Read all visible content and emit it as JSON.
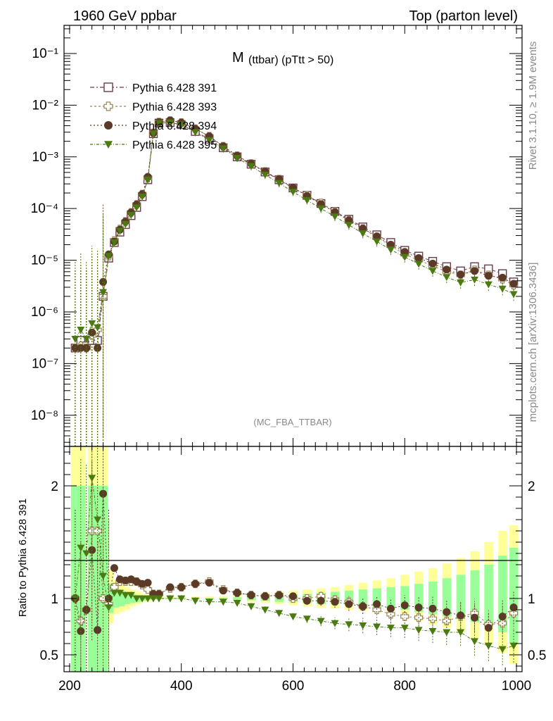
{
  "header": {
    "left": "1960 GeV ppbar",
    "right": "Top (parton level)"
  },
  "side": {
    "rivet": "Rivet 3.1.10, ≥ 1.9M events",
    "mcplots": "mcplots.cern.ch [arXiv:1306.3436]"
  },
  "plot": {
    "title_main": "M",
    "title_sub": "(ttbar) (pTtt > 50)",
    "watermark": "(MC_FBA_TTBAR)"
  },
  "colors": {
    "s391": "#6b3a4e",
    "s393": "#9a8355",
    "s394": "#5c3a28",
    "s395": "#4c7a12",
    "band_yellow": "#ffff99",
    "band_green": "#99ff99"
  },
  "chart_data": [
    {
      "type": "scatter",
      "panel": "main",
      "y_scale": "log",
      "xlim": [
        190,
        1010
      ],
      "ylim": [
        2.5e-09,
        0.35
      ],
      "yticks": [
        {
          "value": 1e-08,
          "label": "10⁻⁸"
        },
        {
          "value": 1e-07,
          "label": "10⁻⁷"
        },
        {
          "value": 1e-06,
          "label": "10⁻⁶"
        },
        {
          "value": 1e-05,
          "label": "10⁻⁵"
        },
        {
          "value": 0.0001,
          "label": "10⁻⁴"
        },
        {
          "value": 0.001,
          "label": "10⁻³"
        },
        {
          "value": 0.01,
          "label": "10⁻²"
        },
        {
          "value": 0.1,
          "label": "10⁻¹"
        }
      ],
      "legend_position": "top-left",
      "series": [
        {
          "name": "Pythia 6.428 391",
          "marker": "open-square",
          "color": "#6b3a4e",
          "x": [
            210,
            220,
            230,
            240,
            250,
            260,
            270,
            280,
            290,
            300,
            310,
            320,
            330,
            340,
            350,
            360,
            380,
            400,
            425,
            450,
            475,
            500,
            525,
            550,
            575,
            600,
            625,
            650,
            675,
            700,
            725,
            750,
            775,
            800,
            825,
            850,
            875,
            900,
            925,
            950,
            975,
            995
          ],
          "y": [
            2e-07,
            2.8e-07,
            2.2e-07,
            2.8e-07,
            2.8e-07,
            2e-06,
            1.1e-05,
            2.2e-05,
            3.5e-05,
            4.9e-05,
            7.3e-05,
            0.000105,
            0.00017,
            0.00036,
            0.0028,
            0.0045,
            0.0046,
            0.0042,
            0.0031,
            0.0022,
            0.0015,
            0.001,
            0.00072,
            0.00051,
            0.00036,
            0.00025,
            0.00018,
            0.000125,
            8.8e-05,
            6.2e-05,
            4.4e-05,
            3.1e-05,
            2.2e-05,
            1.55e-05,
            1.2e-05,
            9.5e-06,
            7.5e-06,
            6.2e-06,
            7.5e-06,
            6.8e-06,
            5.5e-06,
            3.8e-06
          ]
        },
        {
          "name": "Pythia 6.428 393",
          "marker": "open-cross",
          "color": "#9a8355",
          "x": [
            210,
            220,
            230,
            240,
            250,
            260,
            270,
            280,
            290,
            300,
            310,
            320,
            330,
            340,
            350,
            360,
            380,
            400,
            425,
            450,
            475,
            500,
            525,
            550,
            575,
            600,
            625,
            650,
            675,
            700,
            725,
            750,
            775,
            800,
            825,
            850,
            875,
            900,
            925,
            950,
            975,
            995
          ],
          "y": [
            2e-07,
            2.2e-07,
            2e-07,
            3.5e-07,
            4.5e-07,
            2e-06,
            1.2e-05,
            2.4e-05,
            4e-05,
            5.6e-05,
            8.4e-05,
            0.00012,
            0.00019,
            0.00039,
            0.0029,
            0.0047,
            0.005,
            0.0046,
            0.0035,
            0.0025,
            0.0016,
            0.00105,
            0.00074,
            0.00052,
            0.00037,
            0.00025,
            0.00018,
            0.000128,
            8.7e-05,
            6e-05,
            4.1e-05,
            2.8e-05,
            1.9e-05,
            1.3e-05,
            1e-05,
            7.8e-06,
            6e-06,
            5.2e-06,
            6.5e-06,
            5.2e-06,
            4.3e-06,
            3.3e-06
          ]
        },
        {
          "name": "Pythia 6.428 394",
          "marker": "filled-circle",
          "color": "#5c3a28",
          "x": [
            210,
            220,
            230,
            240,
            250,
            260,
            270,
            280,
            290,
            300,
            310,
            320,
            330,
            340,
            350,
            360,
            380,
            400,
            425,
            450,
            475,
            500,
            525,
            550,
            575,
            600,
            625,
            650,
            675,
            700,
            725,
            750,
            775,
            800,
            825,
            850,
            875,
            900,
            925,
            950,
            975,
            995
          ],
          "y": [
            2e-07,
            2e-07,
            2e-07,
            4e-07,
            2e-07,
            3.8e-06,
            1.3e-05,
            2.3e-05,
            3.9e-05,
            5.6e-05,
            8.4e-05,
            0.00012,
            0.00019,
            0.00041,
            0.0029,
            0.0047,
            0.0051,
            0.0046,
            0.0035,
            0.0025,
            0.0016,
            0.00105,
            0.00074,
            0.00052,
            0.00037,
            0.000255,
            0.000175,
            0.000122,
            8.5e-05,
            5.9e-05,
            4.1e-05,
            2.9e-05,
            2e-05,
            1.45e-05,
            1.1e-05,
            8.6e-06,
            6.6e-06,
            5.3e-06,
            6.2e-06,
            5e-06,
            4.6e-06,
            3.5e-06
          ]
        },
        {
          "name": "Pythia 6.428 395",
          "marker": "filled-triangle-down",
          "color": "#4c7a12",
          "x": [
            210,
            220,
            230,
            240,
            250,
            260,
            270,
            280,
            290,
            300,
            310,
            320,
            330,
            340,
            350,
            360,
            380,
            400,
            425,
            450,
            475,
            500,
            525,
            550,
            575,
            600,
            625,
            650,
            675,
            700,
            725,
            750,
            775,
            800,
            825,
            850,
            875,
            900,
            925,
            950,
            975,
            995
          ],
          "y": [
            3e-07,
            4.5e-07,
            3e-07,
            6e-07,
            5e-07,
            2.4e-06,
            1.2e-05,
            2.2e-05,
            3.7e-05,
            5e-05,
            7.5e-05,
            0.000105,
            0.00017,
            0.00036,
            0.0028,
            0.0045,
            0.0046,
            0.0042,
            0.003,
            0.0021,
            0.00145,
            0.00095,
            0.00066,
            0.00045,
            0.00031,
            0.00021,
            0.000145,
            0.0001,
            7e-05,
            4.8e-05,
            3.3e-05,
            2.3e-05,
            1.6e-05,
            1.15e-05,
            8.5e-06,
            6.2e-06,
            4.7e-06,
            3.7e-06,
            4.2e-06,
            3.4e-06,
            2.8e-06,
            2.2e-06
          ]
        }
      ]
    },
    {
      "type": "scatter",
      "panel": "ratio",
      "ylabel": "Ratio to Pythia 6.428 391",
      "xlim": [
        190,
        1010
      ],
      "ylim": [
        0.35,
        2.35
      ],
      "xticks": [
        200,
        400,
        600,
        800,
        1000
      ],
      "yticks": [
        0.5,
        1,
        2
      ],
      "bands": {
        "x": [
          210,
          220,
          230,
          240,
          250,
          260,
          270,
          280,
          290,
          300,
          310,
          320,
          330,
          340,
          350,
          360,
          380,
          400,
          425,
          450,
          475,
          500,
          525,
          550,
          575,
          600,
          625,
          650,
          675,
          700,
          725,
          750,
          775,
          800,
          825,
          850,
          875,
          900,
          925,
          950,
          975,
          995
        ],
        "yellow_lo": [
          0.35,
          0.35,
          1,
          0.35,
          0.35,
          0.35,
          0.78,
          0.86,
          0.88,
          0.9,
          0.93,
          0.95,
          0.97,
          0.98,
          0.99,
          0.99,
          0.99,
          0.99,
          0.99,
          0.99,
          0.99,
          0.98,
          0.97,
          0.96,
          0.95,
          0.94,
          0.93,
          0.92,
          0.91,
          0.9,
          0.89,
          0.87,
          0.85,
          0.83,
          0.8,
          0.77,
          0.74,
          0.7,
          0.65,
          0.6,
          0.52,
          0.42
        ],
        "yellow_hi": [
          2.35,
          2.35,
          1,
          2.35,
          2.35,
          2.35,
          1.25,
          1.16,
          1.12,
          1.1,
          1.08,
          1.06,
          1.04,
          1.03,
          1.02,
          1.02,
          1.02,
          1.02,
          1.02,
          1.02,
          1.02,
          1.03,
          1.04,
          1.05,
          1.06,
          1.07,
          1.08,
          1.09,
          1.1,
          1.12,
          1.14,
          1.16,
          1.18,
          1.21,
          1.24,
          1.27,
          1.31,
          1.36,
          1.42,
          1.5,
          1.6,
          1.65
        ],
        "green_lo": [
          0.35,
          0.35,
          1,
          0.35,
          0.35,
          0.35,
          0.87,
          0.92,
          0.93,
          0.95,
          0.96,
          0.97,
          0.98,
          0.99,
          0.995,
          0.995,
          0.995,
          0.995,
          0.995,
          0.995,
          0.995,
          0.99,
          0.985,
          0.98,
          0.97,
          0.97,
          0.96,
          0.95,
          0.95,
          0.94,
          0.93,
          0.92,
          0.91,
          0.9,
          0.88,
          0.86,
          0.84,
          0.82,
          0.79,
          0.76,
          0.7,
          0.6
        ],
        "green_hi": [
          2.0,
          2.0,
          1,
          2.0,
          2.0,
          2.0,
          1.13,
          1.08,
          1.07,
          1.05,
          1.04,
          1.03,
          1.02,
          1.01,
          1.005,
          1.005,
          1.005,
          1.005,
          1.005,
          1.005,
          1.005,
          1.01,
          1.015,
          1.02,
          1.03,
          1.035,
          1.04,
          1.05,
          1.06,
          1.07,
          1.08,
          1.09,
          1.1,
          1.11,
          1.13,
          1.15,
          1.18,
          1.21,
          1.25,
          1.3,
          1.38,
          1.45
        ]
      },
      "series": [
        {
          "name": "Pythia 6.428 393",
          "marker": "open-cross",
          "color": "#9a8355",
          "x": [
            210,
            220,
            230,
            240,
            250,
            260,
            270,
            280,
            290,
            300,
            310,
            320,
            330,
            340,
            350,
            360,
            380,
            400,
            425,
            450,
            475,
            500,
            525,
            550,
            575,
            600,
            625,
            650,
            675,
            700,
            725,
            750,
            775,
            800,
            825,
            850,
            875,
            900,
            925,
            950,
            975,
            995
          ],
          "y": [
            1.0,
            0.8,
            0.9,
            1.6,
            1.6,
            1.0,
            0.95,
            1.1,
            1.15,
            1.15,
            1.15,
            1.15,
            1.12,
            1.08,
            1.04,
            1.04,
            1.09,
            1.1,
            1.13,
            1.15,
            1.08,
            1.05,
            1.03,
            1.02,
            1.03,
            1.0,
            1.0,
            1.02,
            0.99,
            0.97,
            0.93,
            0.9,
            0.86,
            0.84,
            0.83,
            0.82,
            0.8,
            0.84,
            0.87,
            0.77,
            0.78,
            0.87
          ]
        },
        {
          "name": "Pythia 6.428 394",
          "marker": "filled-circle",
          "color": "#5c3a28",
          "x": [
            210,
            220,
            230,
            240,
            250,
            260,
            270,
            280,
            290,
            300,
            310,
            320,
            330,
            340,
            350,
            360,
            380,
            400,
            425,
            450,
            475,
            500,
            525,
            550,
            575,
            600,
            625,
            650,
            675,
            700,
            725,
            750,
            775,
            800,
            825,
            850,
            875,
            900,
            925,
            950,
            975,
            995
          ],
          "y": [
            1.0,
            0.71,
            0.9,
            1.43,
            0.72,
            1.93,
            1.0,
            1.27,
            1.17,
            1.16,
            1.17,
            1.15,
            1.13,
            1.14,
            1.04,
            1.04,
            1.1,
            1.1,
            1.13,
            1.14,
            1.07,
            1.05,
            1.03,
            1.02,
            1.03,
            1.02,
            0.98,
            0.98,
            0.97,
            0.95,
            0.93,
            0.95,
            0.91,
            0.94,
            0.92,
            0.91,
            0.88,
            0.85,
            0.83,
            0.74,
            0.84,
            0.92
          ]
        },
        {
          "name": "Pythia 6.428 395",
          "marker": "filled-triangle-down",
          "color": "#4c7a12",
          "x": [
            210,
            220,
            230,
            240,
            250,
            260,
            270,
            280,
            290,
            300,
            310,
            320,
            330,
            340,
            350,
            360,
            380,
            400,
            425,
            450,
            475,
            500,
            525,
            550,
            575,
            600,
            625,
            650,
            675,
            700,
            725,
            750,
            775,
            800,
            825,
            850,
            875,
            900,
            925,
            950,
            975,
            995
          ],
          "y": [
            1.0,
            1.45,
            1.4,
            2.07,
            1.7,
            1.2,
            0.92,
            1.05,
            1.05,
            1.03,
            1.03,
            1.0,
            1.0,
            1.0,
            1.0,
            1.0,
            1.0,
            1.0,
            0.98,
            0.97,
            0.97,
            0.96,
            0.93,
            0.9,
            0.87,
            0.84,
            0.82,
            0.8,
            0.78,
            0.77,
            0.76,
            0.75,
            0.74,
            0.74,
            0.72,
            0.71,
            0.7,
            0.7,
            0.62,
            0.58,
            0.55,
            0.58
          ]
        }
      ]
    }
  ]
}
